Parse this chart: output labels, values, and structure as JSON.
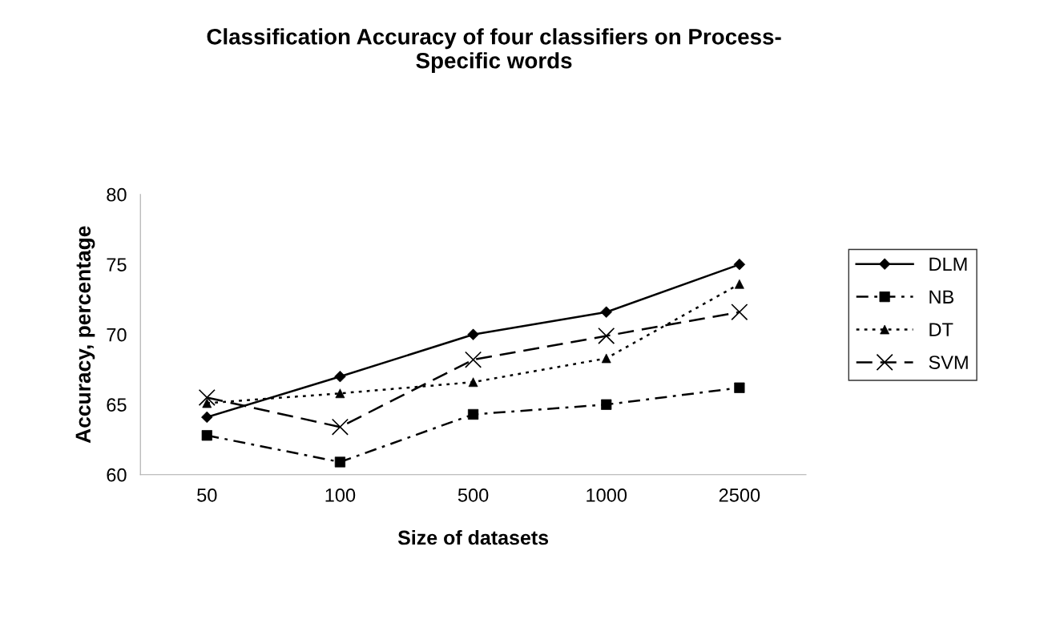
{
  "chart_data": {
    "type": "line",
    "title": "Classification Accuracy of four classifiers on Process-\nSpecific words",
    "xlabel": "Size of datasets",
    "ylabel": "Accuracy, percentage",
    "categories": [
      "50",
      "100",
      "500",
      "1000",
      "2500"
    ],
    "series": [
      {
        "name": "DLM",
        "color": "#000000",
        "marker": "diamond",
        "line_style": "solid",
        "values": [
          64.1,
          67.0,
          70.0,
          71.6,
          75.0
        ]
      },
      {
        "name": "NB",
        "color": "#000000",
        "marker": "square",
        "line_style": "dashdot",
        "values": [
          62.8,
          60.9,
          64.3,
          65.0,
          66.2
        ]
      },
      {
        "name": "DT",
        "color": "#000000",
        "marker": "triangle",
        "line_style": "dotted",
        "values": [
          65.1,
          65.8,
          66.6,
          68.3,
          73.6
        ]
      },
      {
        "name": "SVM",
        "color": "#000000",
        "marker": "cross",
        "line_style": "dashed",
        "values": [
          65.5,
          63.4,
          68.2,
          69.9,
          71.6
        ]
      }
    ],
    "ylim": [
      60,
      80
    ],
    "yticks": [
      60,
      65,
      70,
      75,
      80
    ],
    "grid": false,
    "legend": "right"
  }
}
